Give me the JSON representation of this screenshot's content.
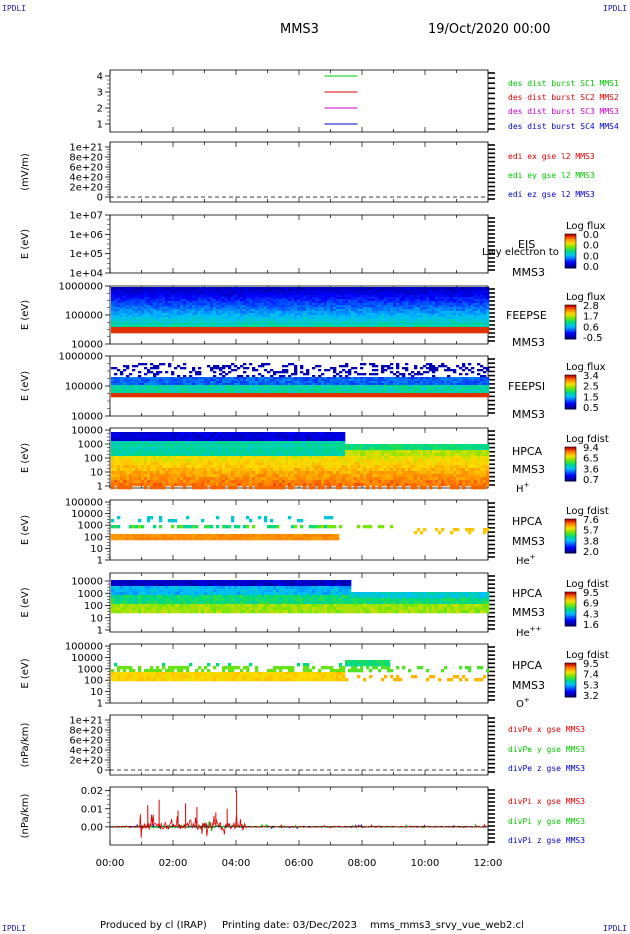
{
  "header": {
    "corner_label": "IPDLI",
    "spacecraft": "MMS3",
    "datetime": "19/Oct/2020 00:00"
  },
  "footer": {
    "produced_by": "Produced by cl (IRAP)",
    "printing_date": "Printing date: 03/Dec/2023",
    "filename": "mms_mms3_srvy_vue_web2.cl"
  },
  "colors": {
    "red": "#e00000",
    "green": "#00c800",
    "blue": "#0000c8",
    "magenta": "#c800c8"
  },
  "chart_data": [
    {
      "type": "line",
      "panel": "availability",
      "yticks": [
        "1",
        "2",
        "3",
        "4"
      ],
      "series": [
        {
          "name": "des dist burst SC1 MMS1",
          "color": "#00c800",
          "level": 4
        },
        {
          "name": "des dist burst SC2 MMS2",
          "color": "#e00000",
          "level": 3
        },
        {
          "name": "des dist burst SC3 MMS3",
          "color": "#c800c8",
          "level": 2
        },
        {
          "name": "des dist burst SC4 MMS4",
          "color": "#0000c8",
          "level": 1
        }
      ],
      "x_span": [
        "07:40",
        "08:40"
      ]
    },
    {
      "type": "line",
      "panel": "edi",
      "ylabel": "(mV/m)",
      "yticks": [
        "0",
        "2e+20",
        "4e+20",
        "6e+20",
        "8e+20",
        "1e+21"
      ],
      "series": [
        {
          "name": "edi ex gse l2 MMS3",
          "color": "#e00000"
        },
        {
          "name": "edi ey gse l2 MMS3",
          "color": "#00c800"
        },
        {
          "name": "edi ez gse l2 MMS3",
          "color": "#0000c8"
        }
      ]
    },
    {
      "type": "heatmap",
      "panel": "eis",
      "ylabel": "E (eV)",
      "yticks": [
        "1e+04",
        "1e+05",
        "1e+06",
        "1e+07"
      ],
      "instrument": "EIS",
      "spacecraft": "MMS3",
      "overlay_text": "Lwy electron to",
      "colorbar": {
        "title": "Log flux",
        "ticks": [
          "0.0",
          "0.0",
          "0.0",
          "0.0"
        ]
      }
    },
    {
      "type": "heatmap",
      "panel": "feepse",
      "ylabel": "E (eV)",
      "yticks": [
        "10000",
        "100000",
        "1000000"
      ],
      "instrument": "FEEPSE",
      "spacecraft": "MMS3",
      "colorbar": {
        "title": "Log flux",
        "ticks": [
          "2.8",
          "1.7",
          "0.6",
          "-0.5"
        ]
      }
    },
    {
      "type": "heatmap",
      "panel": "feepsi",
      "ylabel": "E (eV)",
      "yticks": [
        "10000",
        "100000",
        "1000000"
      ],
      "instrument": "FEEPSI",
      "spacecraft": "MMS3",
      "colorbar": {
        "title": "Log flux",
        "ticks": [
          "3.4",
          "2.5",
          "1.5",
          "0.5"
        ]
      }
    },
    {
      "type": "heatmap",
      "panel": "hpca_h",
      "ylabel": "E (eV)",
      "yticks": [
        "1",
        "10",
        "100",
        "1000",
        "10000"
      ],
      "instrument": "HPCA",
      "spacecraft": "MMS3",
      "species": "H",
      "charge": "+",
      "colorbar": {
        "title": "Log fdist",
        "ticks": [
          "9.4",
          "6.5",
          "3.6",
          "0.7"
        ]
      }
    },
    {
      "type": "heatmap",
      "panel": "hpca_he1",
      "ylabel": "E (eV)",
      "yticks": [
        "1",
        "10",
        "100",
        "1000",
        "10000",
        "100000"
      ],
      "instrument": "HPCA",
      "spacecraft": "MMS3",
      "species": "He",
      "charge": "+",
      "colorbar": {
        "title": "Log fdist",
        "ticks": [
          "7.6",
          "5.7",
          "3.8",
          "2.0"
        ]
      }
    },
    {
      "type": "heatmap",
      "panel": "hpca_he2",
      "ylabel": "E (eV)",
      "yticks": [
        "1",
        "10",
        "100",
        "1000",
        "10000"
      ],
      "instrument": "HPCA",
      "spacecraft": "MMS3",
      "species": "He",
      "charge": "++",
      "colorbar": {
        "title": "Log fdist",
        "ticks": [
          "9.5",
          "6.9",
          "4.3",
          "1.6"
        ]
      }
    },
    {
      "type": "heatmap",
      "panel": "hpca_o",
      "ylabel": "E (eV)",
      "yticks": [
        "1",
        "10",
        "100",
        "1000",
        "10000",
        "100000"
      ],
      "instrument": "HPCA",
      "spacecraft": "MMS3",
      "species": "O",
      "charge": "+",
      "colorbar": {
        "title": "Log fdist",
        "ticks": [
          "9.5",
          "7.4",
          "5.3",
          "3.2"
        ]
      }
    },
    {
      "type": "line",
      "panel": "divpe",
      "ylabel": "(nPa/km)",
      "yticks": [
        "0",
        "2e+20",
        "4e+20",
        "6e+20",
        "8e+20",
        "1e+21"
      ],
      "series": [
        {
          "name": "divPe x gse MMS3",
          "color": "#e00000"
        },
        {
          "name": "divPe y gse MMS3",
          "color": "#00c800"
        },
        {
          "name": "divPe z gse MMS3",
          "color": "#0000c8"
        }
      ]
    },
    {
      "type": "line",
      "panel": "divpi",
      "ylabel": "(nPa/km)",
      "yticks": [
        "0.00",
        "0.01",
        "0.02"
      ],
      "ylim": [
        -0.01,
        0.022
      ],
      "series": [
        {
          "name": "divPi x gse MMS3",
          "color": "#e00000"
        },
        {
          "name": "divPi y gse MMS3",
          "color": "#00c800"
        },
        {
          "name": "divPi z gse MMS3",
          "color": "#0000c8"
        }
      ],
      "xticks": [
        "00:00",
        "02:00",
        "04:00",
        "06:00",
        "08:00",
        "10:00",
        "12:00"
      ]
    }
  ]
}
